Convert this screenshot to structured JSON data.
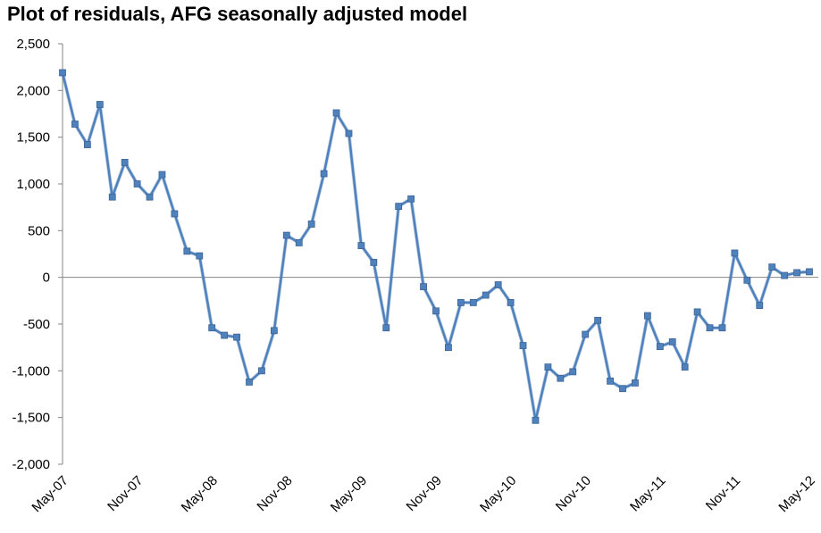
{
  "chart_data": {
    "type": "line",
    "title": "Plot of residuals, AFG seasonally adjusted model",
    "xlabel": "",
    "ylabel": "",
    "ylim": [
      -2000,
      2500
    ],
    "y_ticks": [
      2500,
      2000,
      1500,
      1000,
      500,
      0,
      -500,
      -1000,
      -1500,
      -2000
    ],
    "y_tick_labels": [
      "2,500",
      "2,000",
      "1,500",
      "1,000",
      "500",
      "0",
      "-500",
      "-1,000",
      "-1,500",
      "-2,000"
    ],
    "x_tick_labels": [
      "May-07",
      "Nov-07",
      "May-08",
      "Nov-08",
      "May-09",
      "Nov-09",
      "May-10",
      "Nov-10",
      "May-11",
      "Nov-11",
      "May-12"
    ],
    "grid": false,
    "legend": "none",
    "series_color": "#4f81bd",
    "x": [
      "May-07",
      "Jun-07",
      "Jul-07",
      "Aug-07",
      "Sep-07",
      "Oct-07",
      "Nov-07",
      "Dec-07",
      "Jan-08",
      "Feb-08",
      "Mar-08",
      "Apr-08",
      "May-08",
      "Jun-08",
      "Jul-08",
      "Aug-08",
      "Sep-08",
      "Oct-08",
      "Nov-08",
      "Dec-08",
      "Jan-09",
      "Feb-09",
      "Mar-09",
      "Apr-09",
      "May-09",
      "Jun-09",
      "Jul-09",
      "Aug-09",
      "Sep-09",
      "Oct-09",
      "Nov-09",
      "Dec-09",
      "Jan-10",
      "Feb-10",
      "Mar-10",
      "Apr-10",
      "May-10",
      "Jun-10",
      "Jul-10",
      "Aug-10",
      "Sep-10",
      "Oct-10",
      "Nov-10",
      "Dec-10",
      "Jan-11",
      "Feb-11",
      "Mar-11",
      "Apr-11",
      "May-11",
      "Jun-11",
      "Jul-11",
      "Aug-11",
      "Sep-11",
      "Oct-11",
      "Nov-11",
      "Dec-11",
      "Jan-12",
      "Feb-12",
      "Mar-12",
      "Apr-12",
      "May-12"
    ],
    "series": [
      {
        "values": [
          2190,
          1640,
          1420,
          1850,
          860,
          1230,
          1000,
          860,
          1100,
          680,
          280,
          230,
          -540,
          -620,
          -640,
          -1120,
          -1000,
          -570,
          450,
          370,
          570,
          1110,
          1760,
          1540,
          340,
          160,
          -540,
          760,
          840,
          -100,
          -360,
          -750,
          -270,
          -270,
          -190,
          -80,
          -270,
          -730,
          -1530,
          -960,
          -1080,
          -1010,
          -610,
          -460,
          -1110,
          -1190,
          -1130,
          -410,
          -740,
          -690,
          -960,
          -370,
          -540,
          -540,
          260,
          -30,
          -300,
          110,
          20,
          50,
          60
        ]
      }
    ]
  }
}
